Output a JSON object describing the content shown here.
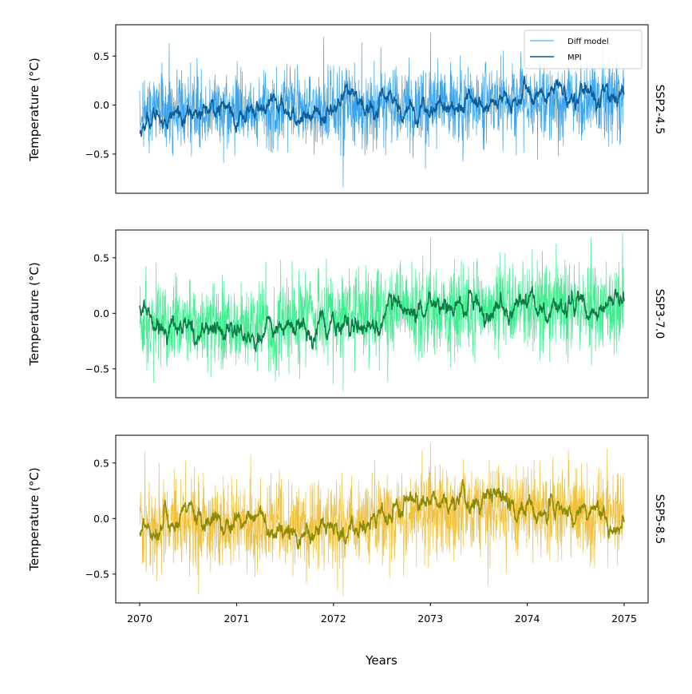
{
  "chart_data": {
    "type": "line",
    "xlabel": "Years",
    "x_range": [
      2070,
      2075
    ],
    "x_ticks": [
      "2070",
      "2071",
      "2072",
      "2073",
      "2074",
      "2075"
    ],
    "legend": {
      "placement": "top-right",
      "entries": [
        "Diff model",
        "MPI"
      ]
    },
    "panels": [
      {
        "label": "SSP2-4.5",
        "ylabel": "Temperature (°C)",
        "ylim": [
          -0.9,
          0.82
        ],
        "yticks": [
          -0.5,
          0.0,
          0.5
        ],
        "ytick_labels": [
          "−0.5",
          "0.0",
          "0.5"
        ],
        "colors": {
          "diff": "#3aa3ec",
          "mpi": "#0d5c96"
        },
        "series": [
          {
            "name": "Diff model",
            "color": "#3aa3ec",
            "std": 0.2,
            "offset_per_year": [
              -0.05,
              -0.04,
              -0.02,
              0.0,
              0.05,
              0.08
            ],
            "extremes": {
              "max": 0.74,
              "min": -0.84
            }
          },
          {
            "name": "MPI",
            "color": "#0d5c96",
            "mean_per_year": [
              -0.1,
              -0.06,
              -0.02,
              0.0,
              0.08,
              0.1
            ],
            "start": -0.3
          }
        ]
      },
      {
        "label": "SSP3-7.0",
        "ylabel": "Temperature (°C)",
        "ylim": [
          -0.76,
          0.75
        ],
        "yticks": [
          -0.5,
          0.0,
          0.5
        ],
        "ytick_labels": [
          "−0.5",
          "0.0",
          "0.5"
        ],
        "colors": {
          "diff": "#3ded8e",
          "mpi": "#0c7a45"
        },
        "series": [
          {
            "name": "Diff model",
            "color": "#3ded8e",
            "std": 0.2,
            "offset_per_year": [
              -0.08,
              -0.12,
              -0.02,
              0.02,
              0.06,
              0.1
            ],
            "extremes": {
              "max": 0.68,
              "min": -0.7
            }
          },
          {
            "name": "MPI",
            "color": "#0c7a45",
            "mean_per_year": [
              -0.05,
              -0.2,
              -0.1,
              0.0,
              0.05,
              0.05
            ],
            "start": 0.05
          }
        ]
      },
      {
        "label": "SSP5-8.5",
        "ylabel": "Temperature (°C)",
        "ylim": [
          -0.76,
          0.75
        ],
        "yticks": [
          -0.5,
          0.0,
          0.5
        ],
        "ytick_labels": [
          "−0.5",
          "0.0",
          "0.5"
        ],
        "colors": {
          "diff": "#f0c040",
          "mpi": "#8a8a05"
        },
        "series": [
          {
            "name": "Diff model",
            "color": "#f0c040",
            "std": 0.2,
            "offset_per_year": [
              -0.05,
              -0.06,
              -0.05,
              0.05,
              0.08,
              0.06
            ],
            "extremes": {
              "max": 0.68,
              "min": -0.7
            }
          },
          {
            "name": "MPI",
            "color": "#8a8a05",
            "mean_per_year": [
              0.0,
              -0.05,
              -0.15,
              0.15,
              0.1,
              0.02
            ],
            "start": -0.1
          }
        ]
      }
    ]
  }
}
